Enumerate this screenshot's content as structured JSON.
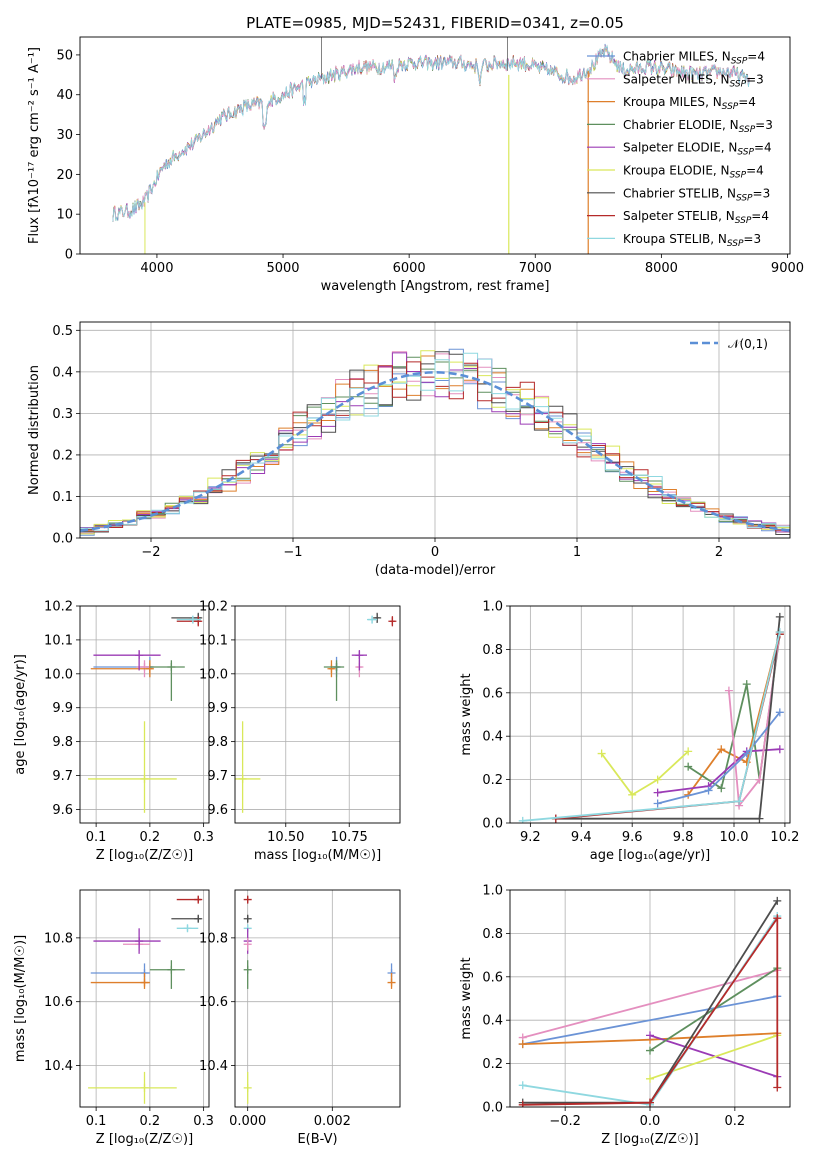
{
  "colors": {
    "Chabrier MILES": "#6b93d6",
    "Salpeter MILES": "#e48fbf",
    "Kroupa MILES": "#de7f2b",
    "Chabrier ELODIE": "#5e8f5e",
    "Salpeter ELODIE": "#9b3bb5",
    "Kroupa ELODIE": "#d9e85a",
    "Chabrier STELIB": "#4d4d4d",
    "Salpeter STELIB": "#b52a2a",
    "Kroupa STELIB": "#8fd8e0"
  },
  "chart_data": [
    {
      "id": "spectrum",
      "type": "line",
      "title": "PLATE=0985, MJD=52431, FIBERID=0341, z=0.05",
      "xlabel": "wavelength [Angstrom, rest frame]",
      "ylabel": "Flux [fλ10⁻¹⁷ erg cm⁻² s⁻¹ A⁻¹]",
      "xlim": [
        3390,
        9020
      ],
      "ylim": [
        0,
        54.5
      ],
      "xticks": [
        "4000",
        "5000",
        "6000",
        "7000",
        "8000",
        "9000"
      ],
      "yticks": [
        "0",
        "10",
        "20",
        "30",
        "40",
        "50"
      ],
      "grid": false,
      "legend_position": "upper-right",
      "legend": [
        {
          "name": "Chabrier MILES",
          "nssp": "4"
        },
        {
          "name": "Salpeter MILES",
          "nssp": "3"
        },
        {
          "name": "Kroupa MILES",
          "nssp": "4"
        },
        {
          "name": "Chabrier ELODIE",
          "nssp": "3"
        },
        {
          "name": "Salpeter ELODIE",
          "nssp": "4"
        },
        {
          "name": "Kroupa ELODIE",
          "nssp": "4"
        },
        {
          "name": "Chabrier STELIB",
          "nssp": "3"
        },
        {
          "name": "Salpeter STELIB",
          "nssp": "4"
        },
        {
          "name": "Kroupa STELIB",
          "nssp": "3"
        }
      ],
      "continuum": [
        [
          3650,
          10
        ],
        [
          3800,
          11
        ],
        [
          3900,
          13
        ],
        [
          3950,
          16
        ],
        [
          4050,
          22
        ],
        [
          4200,
          26
        ],
        [
          4300,
          28
        ],
        [
          4500,
          34
        ],
        [
          4700,
          37
        ],
        [
          4860,
          38
        ],
        [
          5000,
          40
        ],
        [
          5200,
          43
        ],
        [
          5400,
          45
        ],
        [
          5600,
          47
        ],
        [
          5800,
          47
        ],
        [
          6000,
          48
        ],
        [
          6200,
          48
        ],
        [
          6400,
          48
        ],
        [
          6560,
          47
        ],
        [
          6700,
          48
        ],
        [
          6900,
          48
        ],
        [
          7100,
          46
        ],
        [
          7300,
          44
        ],
        [
          7450,
          47
        ],
        [
          7550,
          51
        ],
        [
          7700,
          46
        ],
        [
          7900,
          47
        ],
        [
          8100,
          46
        ],
        [
          8300,
          45
        ],
        [
          8500,
          46
        ],
        [
          8700,
          44
        ]
      ]
    },
    {
      "id": "residuals",
      "type": "histogram",
      "xlabel": "(data-model)/error",
      "ylabel": "Normed distribution",
      "xlim": [
        -2.5,
        2.5
      ],
      "ylim": [
        0,
        0.52
      ],
      "xticks": [
        "−2",
        "−1",
        "0",
        "1",
        "2"
      ],
      "yticks": [
        "0.0",
        "0.1",
        "0.2",
        "0.3",
        "0.4",
        "0.5"
      ],
      "grid": true,
      "legend_position": "upper-right",
      "reference_label": "𝒩(0,1)",
      "bin_width": 0.1
    },
    {
      "id": "age_vs_Z",
      "type": "scatter",
      "xlabel": "Z [log₁₀(Z/Z☉)]",
      "ylabel": "age  [log₁₀(age/yr)]",
      "xlim": [
        0.07,
        0.31
      ],
      "ylim": [
        9.56,
        10.2
      ],
      "xticks": [
        "0.1",
        "0.2",
        "0.3"
      ],
      "yticks": [
        "9.6",
        "9.7",
        "9.8",
        "9.9",
        "10.0",
        "10.1",
        "10.2"
      ],
      "points": [
        {
          "model": "Chabrier MILES",
          "x": 0.2,
          "y": 10.02,
          "xerr": [
            0.095,
            0.205
          ],
          "yerr": [
            9.99,
            10.05
          ]
        },
        {
          "model": "Salpeter MILES",
          "x": 0.19,
          "y": 10.02,
          "xerr": [
            0.175,
            0.205
          ],
          "yerr": [
            9.99,
            10.04
          ]
        },
        {
          "model": "Kroupa MILES",
          "x": 0.2,
          "y": 10.015,
          "xerr": [
            0.09,
            0.205
          ],
          "yerr": [
            9.99,
            10.04
          ]
        },
        {
          "model": "Chabrier ELODIE",
          "x": 0.24,
          "y": 10.02,
          "xerr": [
            0.2,
            0.265
          ],
          "yerr": [
            9.92,
            10.04
          ]
        },
        {
          "model": "Salpeter ELODIE",
          "x": 0.18,
          "y": 10.055,
          "xerr": [
            0.095,
            0.22
          ],
          "yerr": [
            10.01,
            10.07
          ]
        },
        {
          "model": "Kroupa ELODIE",
          "x": 0.19,
          "y": 9.69,
          "xerr": [
            0.085,
            0.25
          ],
          "yerr": [
            9.59,
            9.86
          ]
        },
        {
          "model": "Chabrier STELIB",
          "x": 0.29,
          "y": 10.165,
          "xerr": [
            0.24,
            0.295
          ],
          "yerr": [
            10.15,
            10.18
          ]
        },
        {
          "model": "Salpeter STELIB",
          "x": 0.29,
          "y": 10.155,
          "xerr": [
            0.25,
            0.295
          ],
          "yerr": [
            10.14,
            10.17
          ]
        },
        {
          "model": "Kroupa STELIB",
          "x": 0.28,
          "y": 10.16,
          "xerr": [
            0.25,
            0.295
          ],
          "yerr": [
            10.15,
            10.17
          ]
        }
      ]
    },
    {
      "id": "age_vs_mass",
      "type": "scatter",
      "xlabel": "mass [log₁₀(M/M☉)]",
      "ylabel": "",
      "xlim": [
        10.3,
        10.95
      ],
      "ylim": [
        9.56,
        10.2
      ],
      "xticks": [
        "10.50",
        "10.75"
      ],
      "yticks": [
        "9.6",
        "9.7",
        "9.8",
        "9.9",
        "10.0",
        "10.1",
        "10.2"
      ],
      "points": [
        {
          "model": "Chabrier MILES",
          "x": 10.7,
          "y": 10.02,
          "xerr": [
            10.69,
            10.71
          ],
          "yerr": [
            9.99,
            10.05
          ]
        },
        {
          "model": "Salpeter MILES",
          "x": 10.79,
          "y": 10.02,
          "xerr": [
            10.78,
            10.8
          ],
          "yerr": [
            9.99,
            10.04
          ]
        },
        {
          "model": "Kroupa MILES",
          "x": 10.68,
          "y": 10.015,
          "xerr": [
            10.67,
            10.69
          ],
          "yerr": [
            9.99,
            10.04
          ]
        },
        {
          "model": "Chabrier ELODIE",
          "x": 10.7,
          "y": 10.02,
          "xerr": [
            10.65,
            10.73
          ],
          "yerr": [
            9.92,
            10.04
          ]
        },
        {
          "model": "Salpeter ELODIE",
          "x": 10.79,
          "y": 10.055,
          "xerr": [
            10.76,
            10.82
          ],
          "yerr": [
            10.01,
            10.07
          ]
        },
        {
          "model": "Kroupa ELODIE",
          "x": 10.33,
          "y": 9.69,
          "xerr": [
            10.3,
            10.4
          ],
          "yerr": [
            9.59,
            9.86
          ]
        },
        {
          "model": "Chabrier STELIB",
          "x": 10.86,
          "y": 10.165,
          "xerr": [
            10.85,
            10.87
          ],
          "yerr": [
            10.15,
            10.18
          ]
        },
        {
          "model": "Salpeter STELIB",
          "x": 10.92,
          "y": 10.155,
          "xerr": [
            10.91,
            10.93
          ],
          "yerr": [
            10.14,
            10.17
          ]
        },
        {
          "model": "Kroupa STELIB",
          "x": 10.84,
          "y": 10.16,
          "xerr": [
            10.82,
            10.86
          ],
          "yerr": [
            10.15,
            10.17
          ]
        }
      ]
    },
    {
      "id": "weight_vs_age",
      "type": "line",
      "xlabel": "age  [log₁₀(age/yr)]",
      "ylabel": "mass weight",
      "xlim": [
        9.12,
        10.22
      ],
      "ylim": [
        0,
        1.0
      ],
      "xticks": [
        "9.2",
        "9.4",
        "9.6",
        "9.8",
        "10.0",
        "10.2"
      ],
      "yticks": [
        "0.0",
        "0.2",
        "0.4",
        "0.6",
        "0.8",
        "1.0"
      ],
      "series": [
        {
          "model": "Kroupa ELODIE",
          "points": [
            [
              9.48,
              0.32
            ],
            [
              9.6,
              0.13
            ],
            [
              9.7,
              0.2
            ],
            [
              9.82,
              0.33
            ]
          ]
        },
        {
          "model": "Kroupa MILES",
          "points": [
            [
              9.82,
              0.13
            ],
            [
              9.95,
              0.34
            ],
            [
              10.05,
              0.28
            ],
            [
              10.18,
              0.88
            ]
          ]
        },
        {
          "model": "Chabrier ELODIE",
          "points": [
            [
              9.82,
              0.26
            ],
            [
              9.95,
              0.16
            ],
            [
              10.05,
              0.64
            ],
            [
              10.1,
              0.2
            ],
            [
              10.18,
              0.87
            ]
          ]
        },
        {
          "model": "Salpeter ELODIE",
          "points": [
            [
              9.7,
              0.14
            ],
            [
              9.9,
              0.17
            ],
            [
              10.05,
              0.33
            ],
            [
              10.18,
              0.34
            ]
          ]
        },
        {
          "model": "Salpeter MILES",
          "points": [
            [
              9.98,
              0.61
            ],
            [
              10.02,
              0.08
            ],
            [
              10.1,
              0.2
            ],
            [
              10.18,
              0.88
            ]
          ]
        },
        {
          "model": "Chabrier MILES",
          "points": [
            [
              9.7,
              0.09
            ],
            [
              9.9,
              0.15
            ],
            [
              10.05,
              0.32
            ],
            [
              10.18,
              0.51
            ]
          ]
        },
        {
          "model": "Chabrier STELIB",
          "points": [
            [
              9.3,
              0.02
            ],
            [
              10.1,
              0.02
            ],
            [
              10.18,
              0.95
            ]
          ]
        },
        {
          "model": "Salpeter STELIB",
          "points": [
            [
              9.3,
              0.02
            ],
            [
              10.02,
              0.1
            ],
            [
              10.18,
              0.87
            ]
          ]
        },
        {
          "model": "Kroupa STELIB",
          "points": [
            [
              9.17,
              0.01
            ],
            [
              10.02,
              0.1
            ],
            [
              10.18,
              0.88
            ]
          ]
        }
      ]
    },
    {
      "id": "mass_vs_Z",
      "type": "scatter",
      "xlabel": "Z [log₁₀(Z/Z☉)]",
      "ylabel": "mass [log₁₀(M/M☉)]",
      "xlim": [
        0.07,
        0.31
      ],
      "ylim": [
        10.27,
        10.95
      ],
      "xticks": [
        "0.1",
        "0.2",
        "0.3"
      ],
      "yticks": [
        "10.4",
        "10.6",
        "10.8"
      ],
      "points": [
        {
          "model": "Chabrier MILES",
          "x": 0.19,
          "y": 10.69,
          "xerr": [
            0.09,
            0.2
          ],
          "yerr": [
            10.66,
            10.72
          ]
        },
        {
          "model": "Salpeter MILES",
          "x": 0.18,
          "y": 10.78,
          "xerr": [
            0.15,
            0.2
          ],
          "yerr": [
            10.76,
            10.8
          ]
        },
        {
          "model": "Kroupa MILES",
          "x": 0.19,
          "y": 10.66,
          "xerr": [
            0.09,
            0.2
          ],
          "yerr": [
            10.64,
            10.69
          ]
        },
        {
          "model": "Chabrier ELODIE",
          "x": 0.24,
          "y": 10.7,
          "xerr": [
            0.2,
            0.265
          ],
          "yerr": [
            10.64,
            10.73
          ]
        },
        {
          "model": "Salpeter ELODIE",
          "x": 0.18,
          "y": 10.79,
          "xerr": [
            0.095,
            0.22
          ],
          "yerr": [
            10.75,
            10.83
          ]
        },
        {
          "model": "Kroupa ELODIE",
          "x": 0.19,
          "y": 10.33,
          "xerr": [
            0.085,
            0.25
          ],
          "yerr": [
            10.28,
            10.38
          ]
        },
        {
          "model": "Chabrier STELIB",
          "x": 0.29,
          "y": 10.86,
          "xerr": [
            0.24,
            0.295
          ],
          "yerr": [
            10.85,
            10.87
          ]
        },
        {
          "model": "Salpeter STELIB",
          "x": 0.29,
          "y": 10.92,
          "xerr": [
            0.25,
            0.295
          ],
          "yerr": [
            10.91,
            10.93
          ]
        },
        {
          "model": "Kroupa STELIB",
          "x": 0.27,
          "y": 10.83,
          "xerr": [
            0.25,
            0.29
          ],
          "yerr": [
            10.82,
            10.84
          ]
        }
      ]
    },
    {
      "id": "mass_vs_ebv",
      "type": "scatter",
      "xlabel": "E(B-V)",
      "ylabel": "",
      "xlim": [
        -0.0003,
        0.0036
      ],
      "ylim": [
        10.27,
        10.95
      ],
      "xticks": [
        "0.000",
        "0.002"
      ],
      "yticks": [
        "10.4",
        "10.6",
        "10.8"
      ],
      "points": [
        {
          "model": "Salpeter STELIB",
          "x": 0.0,
          "y": 10.92,
          "yerr": [
            10.91,
            10.93
          ]
        },
        {
          "model": "Chabrier STELIB",
          "x": 0.0,
          "y": 10.86,
          "yerr": [
            10.85,
            10.87
          ]
        },
        {
          "model": "Kroupa STELIB",
          "x": 0.0,
          "y": 10.83,
          "yerr": [
            10.82,
            10.84
          ]
        },
        {
          "model": "Salpeter ELODIE",
          "x": 0.0,
          "y": 10.79,
          "yerr": [
            10.75,
            10.83
          ]
        },
        {
          "model": "Salpeter MILES",
          "x": 0.0,
          "y": 10.78,
          "yerr": [
            10.76,
            10.8
          ]
        },
        {
          "model": "Chabrier ELODIE",
          "x": 0.0,
          "y": 10.7,
          "yerr": [
            10.64,
            10.73
          ]
        },
        {
          "model": "Kroupa ELODIE",
          "x": 0.0,
          "y": 10.33,
          "yerr": [
            10.28,
            10.38
          ]
        },
        {
          "model": "Chabrier MILES",
          "x": 0.0034,
          "y": 10.69,
          "yerr": [
            10.66,
            10.72
          ]
        },
        {
          "model": "Kroupa MILES",
          "x": 0.0034,
          "y": 10.66,
          "yerr": [
            10.64,
            10.69
          ]
        }
      ]
    },
    {
      "id": "weight_vs_Z",
      "type": "line",
      "xlabel": "Z [log₁₀(Z/Z☉)]",
      "ylabel": "mass weight",
      "xlim": [
        -0.33,
        0.33
      ],
      "ylim": [
        0,
        1.0
      ],
      "xticks": [
        "−0.2",
        "0.0",
        "0.2"
      ],
      "yticks": [
        "0.0",
        "0.2",
        "0.4",
        "0.6",
        "0.8",
        "1.0"
      ],
      "series": [
        {
          "model": "Salpeter MILES",
          "points": [
            [
              -0.3,
              0.32
            ],
            [
              0.3,
              0.63
            ]
          ]
        },
        {
          "model": "Chabrier MILES",
          "points": [
            [
              -0.3,
              0.29
            ],
            [
              0.3,
              0.51
            ]
          ]
        },
        {
          "model": "Kroupa MILES",
          "points": [
            [
              -0.3,
              0.29
            ],
            [
              0.0,
              0.31
            ],
            [
              0.3,
              0.34
            ]
          ]
        },
        {
          "model": "Salpeter ELODIE",
          "points": [
            [
              0.0,
              0.33
            ],
            [
              0.3,
              0.14
            ]
          ]
        },
        {
          "model": "Kroupa ELODIE",
          "points": [
            [
              0.0,
              0.13
            ],
            [
              0.3,
              0.33
            ]
          ]
        },
        {
          "model": "Chabrier ELODIE",
          "points": [
            [
              0.0,
              0.26
            ],
            [
              0.3,
              0.64
            ]
          ]
        },
        {
          "model": "Kroupa STELIB",
          "points": [
            [
              -0.3,
              0.1
            ],
            [
              0.0,
              0.01
            ],
            [
              0.3,
              0.88
            ]
          ]
        },
        {
          "model": "Chabrier STELIB",
          "points": [
            [
              -0.3,
              0.02
            ],
            [
              0.0,
              0.02
            ],
            [
              0.3,
              0.95
            ]
          ]
        },
        {
          "model": "Salpeter STELIB",
          "points": [
            [
              -0.3,
              0.01
            ],
            [
              0.0,
              0.02
            ],
            [
              0.3,
              0.87
            ],
            [
              0.3,
              0.09
            ]
          ]
        }
      ]
    }
  ]
}
